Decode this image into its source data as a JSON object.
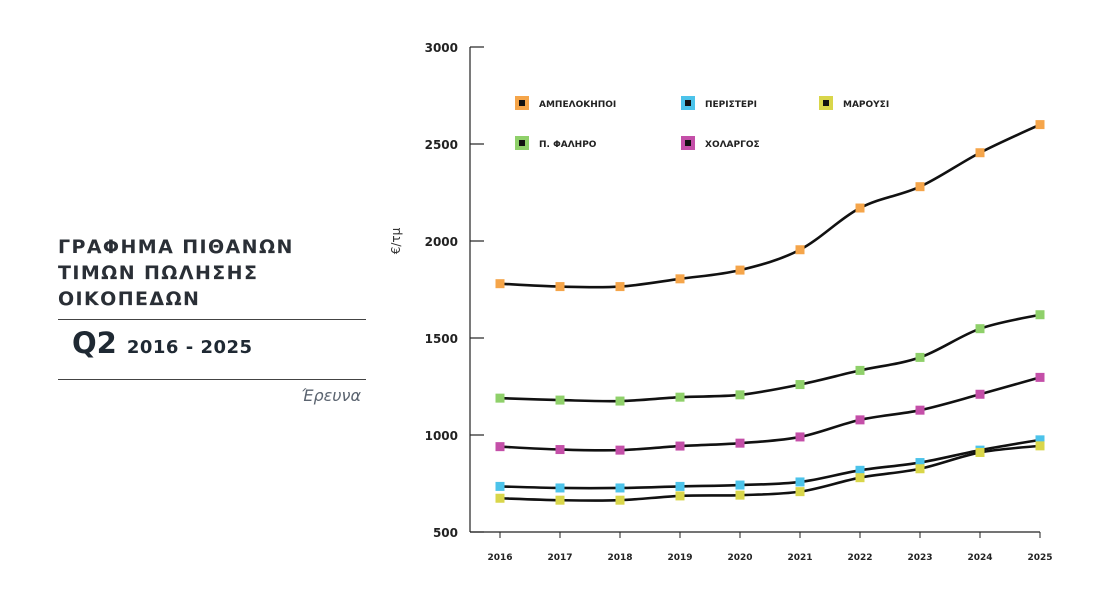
{
  "panel": {
    "title_lines": [
      "ΓΡΑΦΗΜΑ ΠΙΘΑΝΩΝ",
      "ΤΙΜΩΝ ΠΩΛΗΣΗΣ",
      "ΟΙΚΟΠΕΔΩΝ"
    ],
    "quarter": "Q2",
    "years": "2016 - 2025",
    "source": "Έρευνα"
  },
  "chart_data": {
    "type": "line",
    "title": "",
    "xlabel": "",
    "ylabel": "€/τμ",
    "x": [
      "2016",
      "2017",
      "2018",
      "2019",
      "2020",
      "2021",
      "2022",
      "2023",
      "2024",
      "2025"
    ],
    "ylim": [
      500,
      3000
    ],
    "yticks": [
      500,
      1000,
      1500,
      2000,
      2500,
      3000
    ],
    "grid": false,
    "legend_position": "top-left",
    "line_color": "#111111",
    "series": [
      {
        "name": "ΑΜΠΕΛΟΚΗΠΟΙ",
        "color": "#f5a54a",
        "values": [
          1780,
          1765,
          1765,
          1805,
          1850,
          1955,
          2170,
          2280,
          2455,
          2600
        ]
      },
      {
        "name": "ΠΕΡΙΣΤΕΡΙ",
        "color": "#4cc3ea",
        "values": [
          735,
          727,
          727,
          735,
          742,
          758,
          818,
          858,
          922,
          975
        ]
      },
      {
        "name": "ΜΑΡΟΥΣΙ",
        "color": "#d9d64a",
        "values": [
          674,
          664,
          664,
          686,
          690,
          708,
          780,
          826,
          910,
          944
        ]
      },
      {
        "name": "Π. ΦΑΛΗΡΟ",
        "color": "#8fd06a",
        "values": [
          1190,
          1180,
          1175,
          1195,
          1207,
          1260,
          1333,
          1400,
          1548,
          1620
        ]
      },
      {
        "name": "ΧΟΛΑΡΓΟΣ",
        "color": "#c44fa8",
        "values": [
          940,
          925,
          922,
          943,
          958,
          990,
          1078,
          1128,
          1210,
          1297
        ]
      }
    ]
  }
}
